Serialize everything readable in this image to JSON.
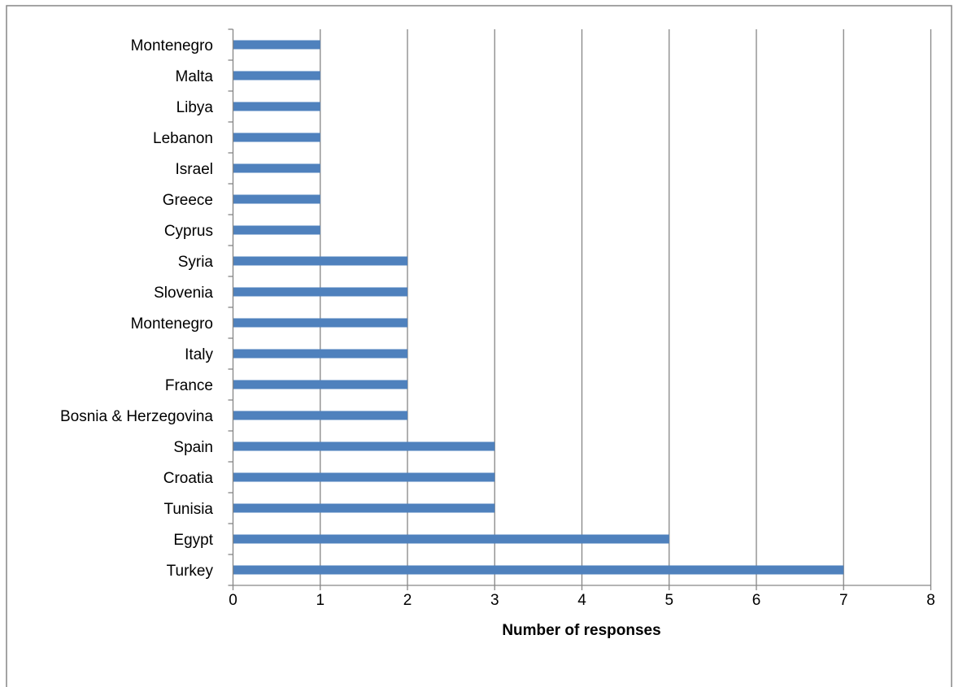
{
  "chart_data": {
    "type": "bar",
    "orientation": "horizontal",
    "title": "",
    "xlabel": "Number of responses",
    "ylabel": "",
    "categories": [
      "Turkey",
      "Egypt",
      "Tunisia",
      "Croatia",
      "Spain",
      "Bosnia & Herzegovina",
      "France",
      "Italy",
      "Montenegro",
      "Slovenia",
      "Syria",
      "Cyprus",
      "Greece",
      "Israel",
      "Lebanon",
      "Libya",
      "Malta",
      "Montenegro"
    ],
    "series": [
      {
        "values": [
          7,
          5,
          3,
          3,
          3,
          2,
          2,
          2,
          2,
          2,
          2,
          1,
          1,
          1,
          1,
          1,
          1,
          1
        ]
      }
    ],
    "xlim": [
      0,
      8
    ],
    "xticks": [
      "0",
      "1",
      "2",
      "3",
      "4",
      "5",
      "6",
      "7",
      "8"
    ],
    "grid": "vertical",
    "legend": "none",
    "colors": {
      "bar": "#4f81bd",
      "grid": "#868686",
      "axis": "#868686",
      "frame": "#868686"
    }
  }
}
